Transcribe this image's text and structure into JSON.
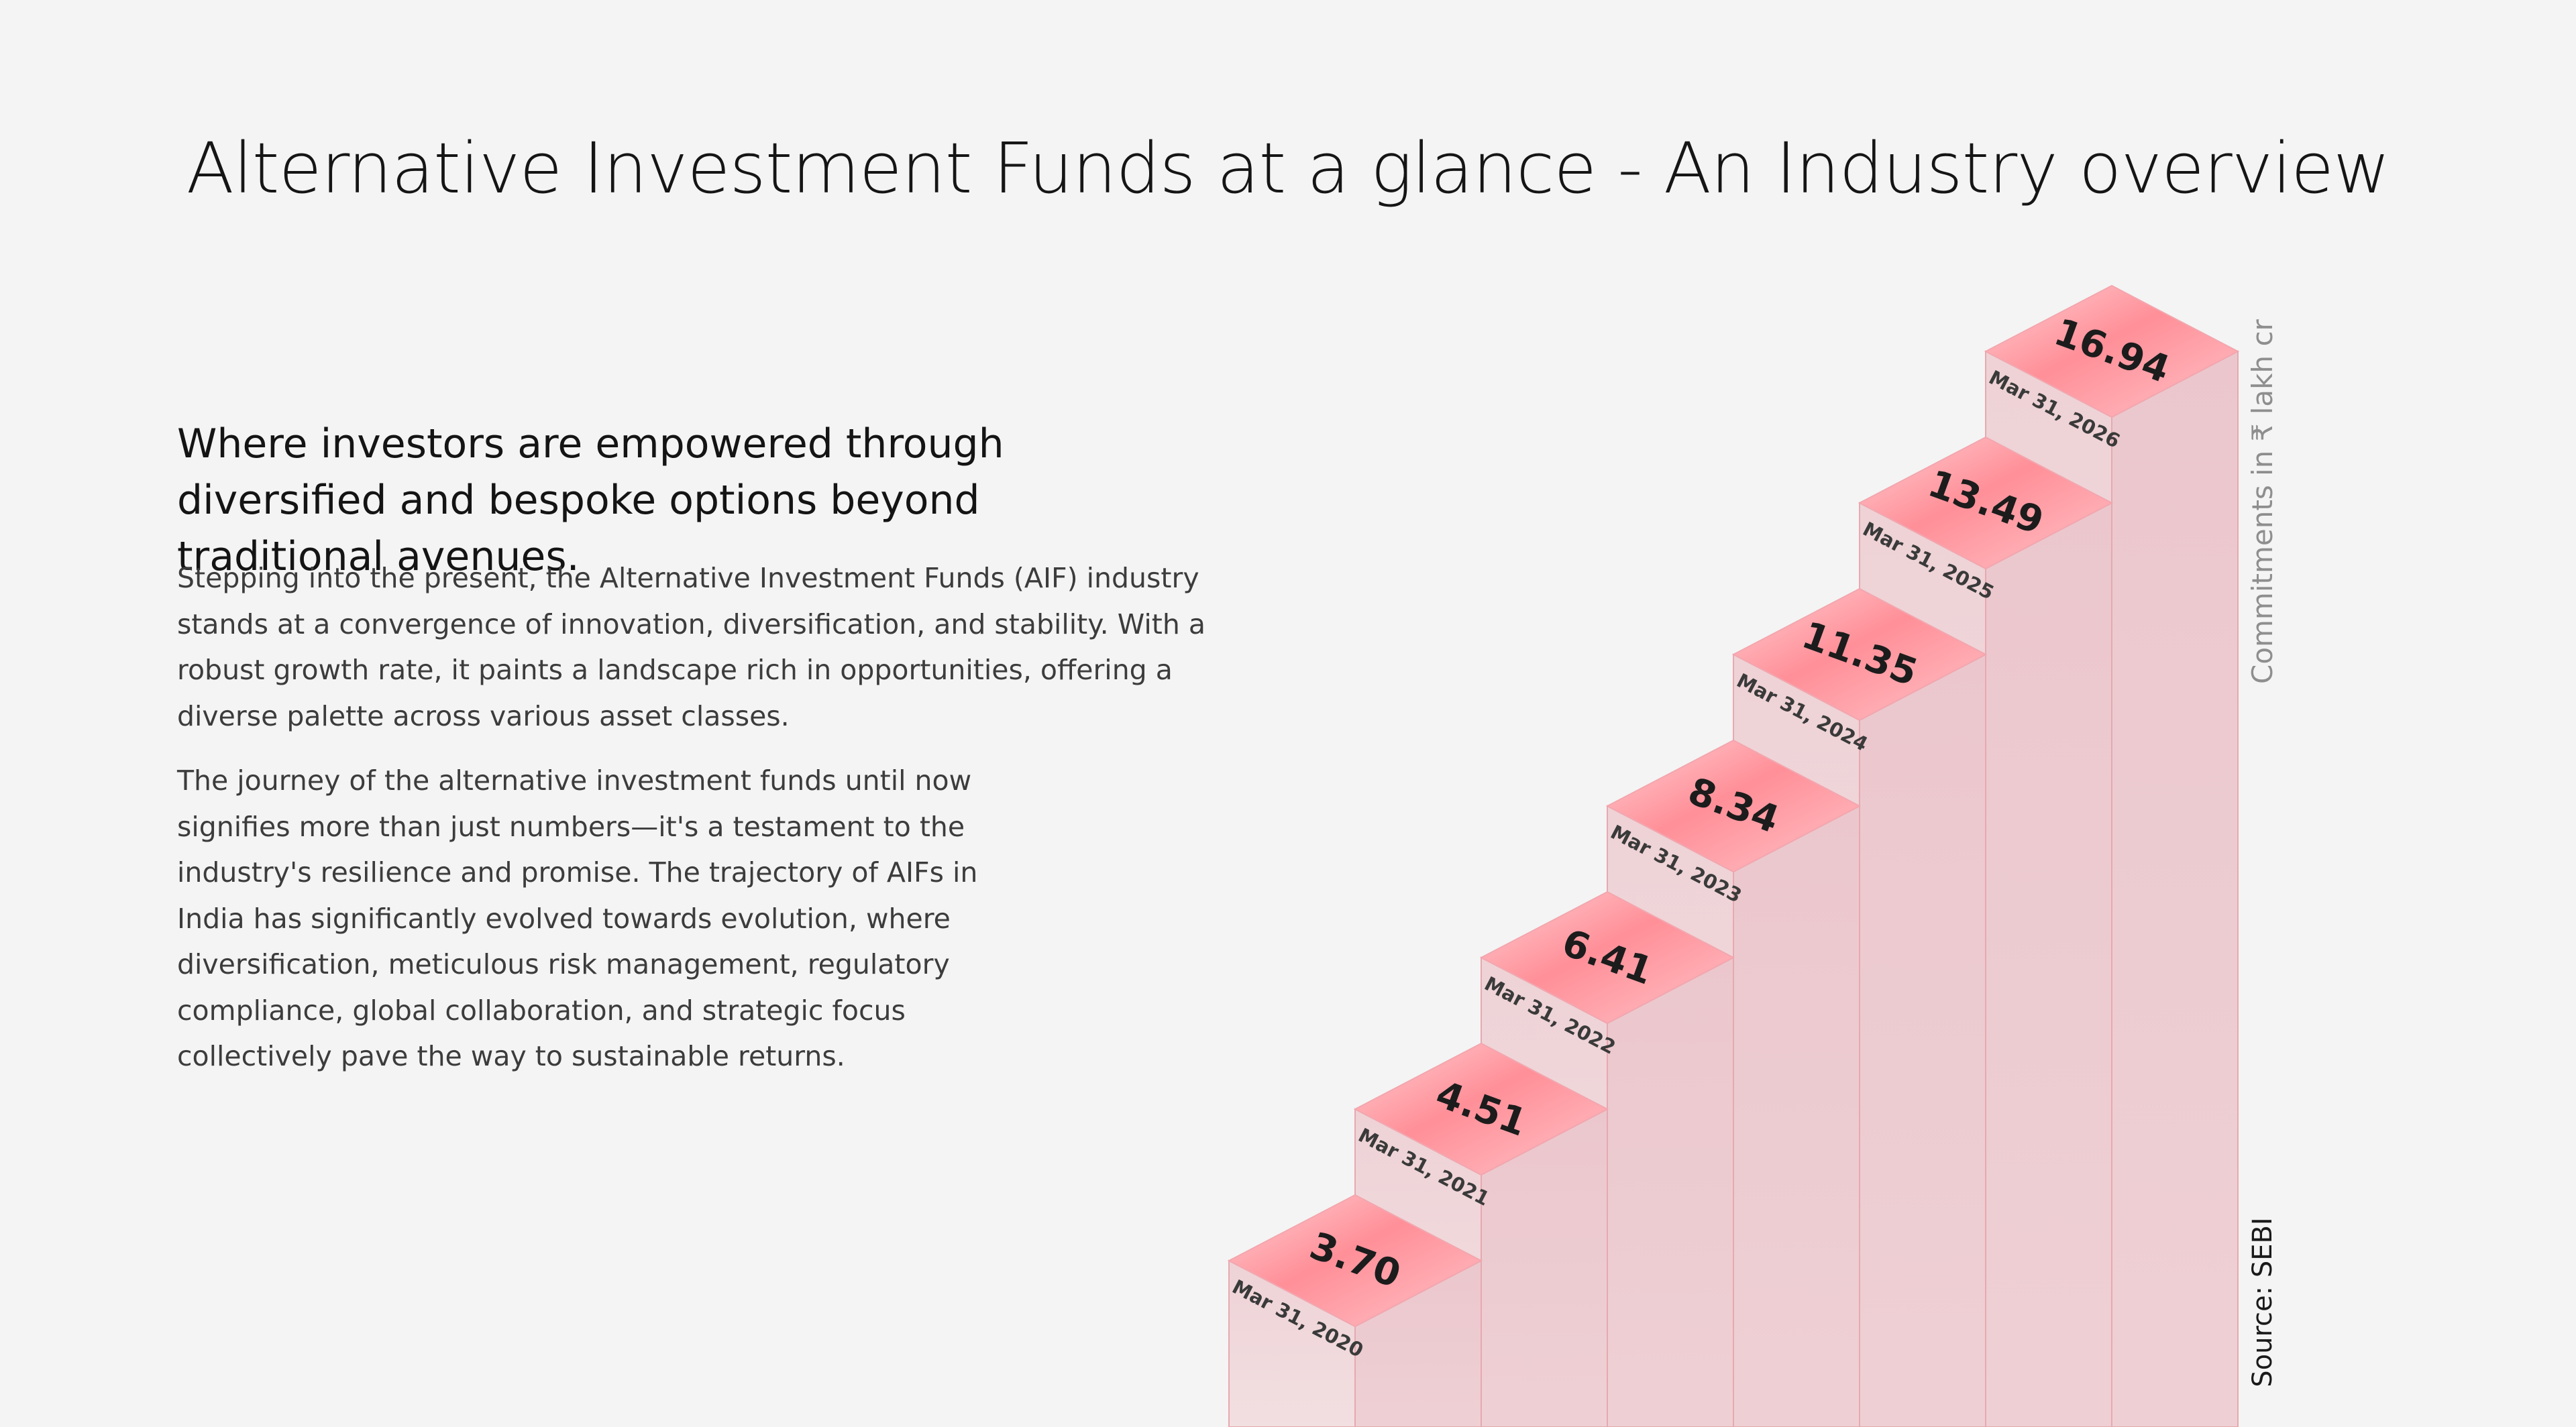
{
  "title": "Alternative Investment Funds at a glance - An Industry overview",
  "tagline": "Where investors are empowered through diversified and bespoke options beyond traditional avenues.",
  "paragraphs": [
    "Stepping into the present, the Alternative Investment Funds (AIF) industry stands at a convergence of innovation, diversification, and stability. With a robust growth rate, it paints a landscape rich in opportunities, offering a diverse palette across various asset classes.",
    "The journey of the alternative investment funds until now signifies more than just numbers—it's a testament to the industry's resilience and promise. The trajectory of AIFs in India has significantly evolved towards evolution, where diversification, meticulous risk management, regulatory compliance, global collaboration, and strategic focus collectively pave the way to sustainable returns."
  ],
  "colors": {
    "accent": "#ff8f98",
    "bar_front": "#f0d6da",
    "bar_side": "#eccdd2"
  },
  "chart_data": {
    "type": "bar",
    "style": "3d isometric staircase",
    "categories": [
      "Mar 31, 2020",
      "Mar 31, 2021",
      "Mar 31, 2022",
      "Mar 31, 2023",
      "Mar 31, 2024",
      "Mar 31, 2025",
      "Mar 31, 2026"
    ],
    "values": [
      3.7,
      4.51,
      6.41,
      8.34,
      11.35,
      13.49,
      16.94
    ],
    "value_labels": [
      "3.70",
      "4.51",
      "6.41",
      "8.34",
      "11.35",
      "13.49",
      "16.94"
    ],
    "ylabel": "Commitments in ₹ lakh cr",
    "source": "Source: SEBI",
    "grid": false,
    "legend": "none"
  }
}
